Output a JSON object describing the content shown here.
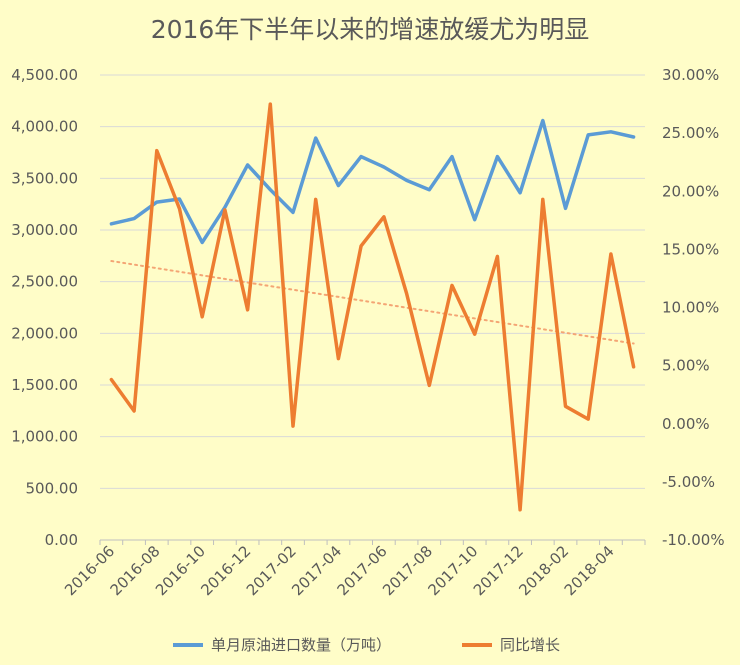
{
  "chart_data": {
    "type": "line",
    "title": "2016年下半年以来的增速放缓尤为明显",
    "x": [
      "2016-06",
      "2016-07",
      "2016-08",
      "2016-09",
      "2016-10",
      "2016-11",
      "2016-12",
      "2017-01",
      "2017-02",
      "2017-03",
      "2017-04",
      "2017-05",
      "2017-06",
      "2017-07",
      "2017-08",
      "2017-09",
      "2017-10",
      "2017-11",
      "2017-12",
      "2018-01",
      "2018-02",
      "2018-03",
      "2018-04",
      "2018-05"
    ],
    "x_tick_labels": [
      "2016-06",
      "2016-08",
      "2016-10",
      "2016-12",
      "2017-02",
      "2017-04",
      "2017-06",
      "2017-08",
      "2017-10",
      "2017-12",
      "2018-02",
      "2018-04"
    ],
    "y_left": {
      "ylim": [
        0,
        4500
      ],
      "ticks": [
        "0.00",
        "500.00",
        "1,000.00",
        "1,500.00",
        "2,000.00",
        "2,500.00",
        "3,000.00",
        "3,500.00",
        "4,000.00",
        "4,500.00"
      ]
    },
    "y_right": {
      "ylim": [
        -10,
        30
      ],
      "ticks": [
        "-10.00%",
        "-5.00%",
        "0.00%",
        "5.00%",
        "10.00%",
        "15.00%",
        "20.00%",
        "25.00%",
        "30.00%"
      ]
    },
    "series": [
      {
        "name": "单月原油进口数量（万吨）",
        "axis": "left",
        "color": "#5b9bd5",
        "values": [
          3060,
          3110,
          3270,
          3300,
          2880,
          3220,
          3630,
          3390,
          3170,
          3890,
          3430,
          3710,
          3610,
          3480,
          3390,
          3710,
          3100,
          3710,
          3360,
          4060,
          3210,
          3920,
          3950,
          3900
        ]
      },
      {
        "name": "同比增长",
        "axis": "right",
        "color": "#ed7d31",
        "values": [
          3.8,
          1.1,
          23.5,
          18.5,
          9.2,
          18.4,
          9.8,
          27.5,
          -0.2,
          19.3,
          5.6,
          15.3,
          17.8,
          11.2,
          3.3,
          11.9,
          7.7,
          14.4,
          -7.4,
          19.3,
          1.5,
          0.4,
          14.6,
          4.9
        ]
      }
    ],
    "trendline": {
      "series": "同比增长",
      "color": "#f4a574",
      "style": "dotted",
      "start": 14.0,
      "end": 6.9
    },
    "grid": true,
    "legend_position": "bottom"
  }
}
